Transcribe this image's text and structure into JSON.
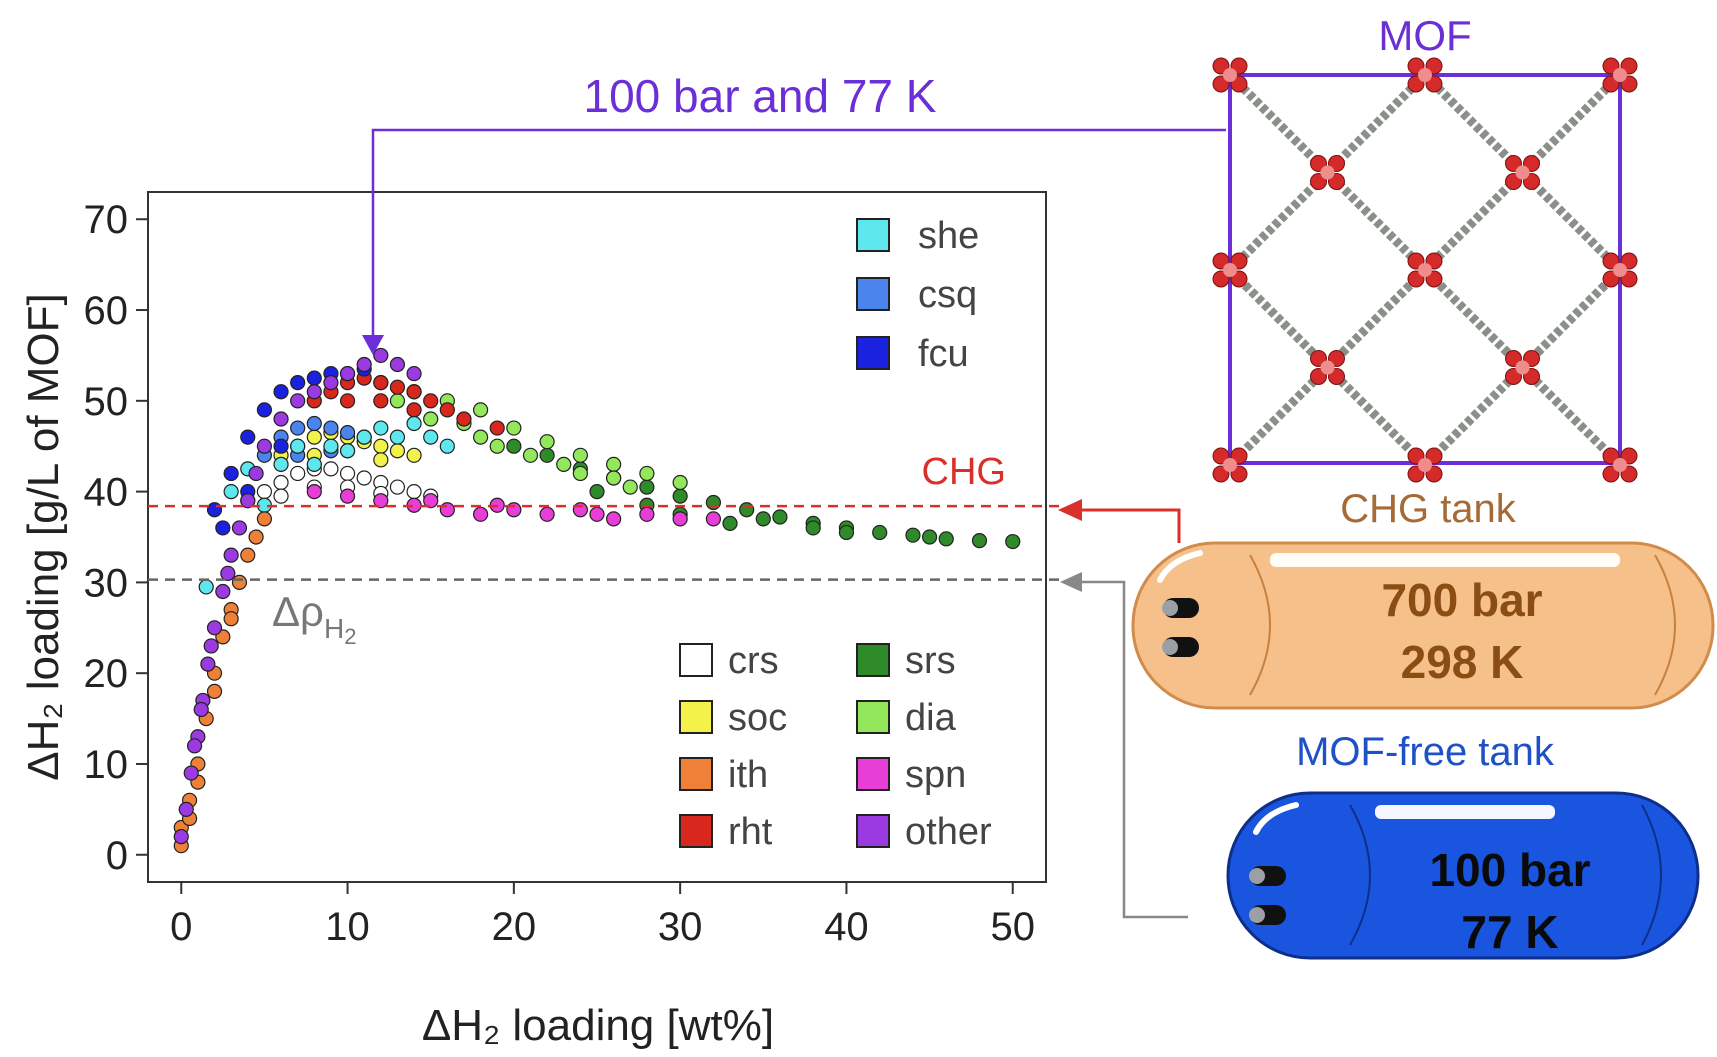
{
  "annotations": {
    "condition": "100 bar and 77 K",
    "mof_title": "MOF",
    "chg_label": "CHG",
    "delta_rho": "Δρ",
    "delta_rho_sub": "H",
    "delta_rho_sub2": "2",
    "chg_tank_title": "CHG tank",
    "chg_tank_line1": "700 bar",
    "chg_tank_line2": "298 K",
    "mof_free_title": "MOF-free tank",
    "mof_free_line1": "100 bar",
    "mof_free_line2": "77 K"
  },
  "colors": {
    "condition": "#6a2fd6",
    "chg": "#d9302c",
    "ref_gray": "#777777",
    "chg_tank_fill": "#f6c08a",
    "chg_tank_text": "#8a4d14",
    "mof_free_fill": "#1a55e0",
    "mof_free_title": "#1e50c8",
    "mof_frame": "#6a2fd6"
  },
  "chart_data": {
    "type": "scatter",
    "xlabel": "ΔH₂ loading [wt%]",
    "ylabel": "ΔH₂ loading [g/L of MOF]",
    "xlim": [
      -2,
      52
    ],
    "ylim": [
      -3,
      73
    ],
    "xticks": [
      0,
      10,
      20,
      30,
      40,
      50
    ],
    "yticks": [
      0,
      10,
      20,
      30,
      40,
      50,
      60,
      70
    ],
    "reference_lines": [
      {
        "name": "CHG",
        "y": 38.4,
        "color": "#d9302c",
        "style": "dashed"
      },
      {
        "name": "Δρ H2",
        "y": 30.3,
        "color": "#666666",
        "style": "dashed"
      }
    ],
    "legend_top": [
      {
        "name": "she",
        "color": "#5ee8ee"
      },
      {
        "name": "csq",
        "color": "#4a84ec"
      },
      {
        "name": "fcu",
        "color": "#1a22e0"
      }
    ],
    "legend_bottom": [
      {
        "name": "crs",
        "color": "#ffffff"
      },
      {
        "name": "soc",
        "color": "#f2f24a"
      },
      {
        "name": "ith",
        "color": "#ee8038"
      },
      {
        "name": "rht",
        "color": "#d8281e"
      },
      {
        "name": "srs",
        "color": "#2f8a2a"
      },
      {
        "name": "dia",
        "color": "#92e85a"
      },
      {
        "name": "spn",
        "color": "#e83ed8"
      },
      {
        "name": "other",
        "color": "#9a3ae0"
      }
    ],
    "series": [
      {
        "name": "srs",
        "color": "#2f8a2a",
        "points": [
          [
            20,
            45
          ],
          [
            22,
            44
          ],
          [
            24,
            42.5
          ],
          [
            26,
            41.5
          ],
          [
            28,
            40.5
          ],
          [
            30,
            39.5
          ],
          [
            32,
            38.8
          ],
          [
            34,
            38
          ],
          [
            36,
            37.2
          ],
          [
            38,
            36.5
          ],
          [
            40,
            36
          ],
          [
            42,
            35.5
          ],
          [
            44,
            35.2
          ],
          [
            46,
            34.8
          ],
          [
            48,
            34.6
          ],
          [
            50,
            34.5
          ],
          [
            25,
            40
          ],
          [
            30,
            37.5
          ],
          [
            35,
            37
          ],
          [
            40,
            35.5
          ],
          [
            45,
            35
          ],
          [
            28,
            38.5
          ],
          [
            33,
            36.5
          ],
          [
            38,
            36
          ]
        ]
      },
      {
        "name": "dia",
        "color": "#92e85a",
        "points": [
          [
            12,
            52
          ],
          [
            14,
            51
          ],
          [
            16,
            50
          ],
          [
            18,
            49
          ],
          [
            20,
            47
          ],
          [
            22,
            45.5
          ],
          [
            24,
            44
          ],
          [
            26,
            43
          ],
          [
            28,
            42
          ],
          [
            30,
            41
          ],
          [
            15,
            48
          ],
          [
            18,
            46
          ],
          [
            21,
            44
          ],
          [
            24,
            42
          ],
          [
            27,
            40.5
          ],
          [
            13,
            50
          ],
          [
            17,
            47.5
          ],
          [
            19,
            45
          ],
          [
            23,
            43
          ],
          [
            26,
            41.5
          ]
        ]
      },
      {
        "name": "crs",
        "color": "#ffffff",
        "points": [
          [
            4,
            39
          ],
          [
            5,
            40
          ],
          [
            6,
            41
          ],
          [
            7,
            42
          ],
          [
            8,
            42.5
          ],
          [
            9,
            42.5
          ],
          [
            10,
            42
          ],
          [
            11,
            41.5
          ],
          [
            12,
            41
          ],
          [
            13,
            40.5
          ],
          [
            14,
            40
          ],
          [
            15,
            39.5
          ],
          [
            6,
            39.5
          ],
          [
            8,
            40.5
          ],
          [
            10,
            40.5
          ],
          [
            12,
            39.8
          ]
        ]
      },
      {
        "name": "soc",
        "color": "#f2f24a",
        "points": [
          [
            6,
            44
          ],
          [
            7,
            45
          ],
          [
            8,
            46
          ],
          [
            9,
            46.5
          ],
          [
            10,
            46
          ],
          [
            11,
            45.5
          ],
          [
            12,
            45
          ],
          [
            13,
            44.5
          ],
          [
            8,
            44
          ],
          [
            10,
            44.5
          ],
          [
            12,
            43.5
          ],
          [
            14,
            44
          ]
        ]
      },
      {
        "name": "rht",
        "color": "#d8281e",
        "points": [
          [
            8,
            50
          ],
          [
            9,
            51
          ],
          [
            10,
            52
          ],
          [
            11,
            52.5
          ],
          [
            12,
            52
          ],
          [
            13,
            51.5
          ],
          [
            14,
            51
          ],
          [
            15,
            50
          ],
          [
            16,
            49
          ],
          [
            17,
            48
          ],
          [
            10,
            50
          ],
          [
            12,
            50
          ],
          [
            14,
            49
          ],
          [
            19,
            47
          ]
        ]
      },
      {
        "name": "csq",
        "color": "#4a84ec",
        "points": [
          [
            5,
            44
          ],
          [
            6,
            46
          ],
          [
            7,
            47
          ],
          [
            8,
            47.5
          ],
          [
            9,
            47
          ],
          [
            10,
            46.5
          ],
          [
            11,
            46
          ],
          [
            7,
            44
          ],
          [
            9,
            44.5
          ]
        ]
      },
      {
        "name": "fcu",
        "color": "#1a22e0",
        "points": [
          [
            2,
            38
          ],
          [
            3,
            42
          ],
          [
            4,
            46
          ],
          [
            5,
            49
          ],
          [
            6,
            51
          ],
          [
            7,
            52
          ],
          [
            8,
            52.5
          ],
          [
            9,
            53
          ],
          [
            10,
            53
          ],
          [
            11,
            53.5
          ],
          [
            2.5,
            36
          ],
          [
            4,
            40
          ],
          [
            6,
            45
          ]
        ]
      },
      {
        "name": "she",
        "color": "#5ee8ee",
        "points": [
          [
            1.5,
            29.5
          ],
          [
            3,
            40
          ],
          [
            4,
            42.5
          ],
          [
            6,
            43
          ],
          [
            7,
            45
          ],
          [
            9,
            45
          ],
          [
            10,
            44.5
          ],
          [
            11,
            46
          ],
          [
            12,
            47
          ],
          [
            13,
            46
          ],
          [
            14,
            47.5
          ],
          [
            15,
            46
          ],
          [
            5,
            38.5
          ],
          [
            8,
            43
          ],
          [
            16,
            45
          ]
        ]
      },
      {
        "name": "spn",
        "color": "#e83ed8",
        "points": [
          [
            8,
            40
          ],
          [
            10,
            39.5
          ],
          [
            12,
            39
          ],
          [
            14,
            38.5
          ],
          [
            16,
            38
          ],
          [
            18,
            37.5
          ],
          [
            20,
            38
          ],
          [
            22,
            37.5
          ],
          [
            24,
            38
          ],
          [
            26,
            37
          ],
          [
            28,
            37.5
          ],
          [
            30,
            37
          ],
          [
            32,
            37
          ],
          [
            15,
            39
          ],
          [
            19,
            38.5
          ],
          [
            25,
            37.5
          ]
        ]
      },
      {
        "name": "ith",
        "color": "#ee8038",
        "points": [
          [
            0,
            1
          ],
          [
            0,
            3
          ],
          [
            0.5,
            6
          ],
          [
            1,
            10
          ],
          [
            1.5,
            15
          ],
          [
            2,
            20
          ],
          [
            2.5,
            24
          ],
          [
            3,
            27
          ],
          [
            3.5,
            30
          ],
          [
            4,
            33
          ],
          [
            4.5,
            35
          ],
          [
            5,
            37
          ],
          [
            0.5,
            4
          ],
          [
            1,
            8
          ],
          [
            2,
            18
          ],
          [
            3,
            26
          ]
        ]
      },
      {
        "name": "other",
        "color": "#9a3ae0",
        "points": [
          [
            0,
            2
          ],
          [
            0.3,
            5
          ],
          [
            0.6,
            9
          ],
          [
            1,
            13
          ],
          [
            1.3,
            17
          ],
          [
            1.6,
            21
          ],
          [
            2,
            25
          ],
          [
            2.5,
            29
          ],
          [
            3,
            33
          ],
          [
            3.5,
            36
          ],
          [
            4,
            39
          ],
          [
            4.5,
            42
          ],
          [
            5,
            45
          ],
          [
            6,
            48
          ],
          [
            7,
            50
          ],
          [
            8,
            51
          ],
          [
            9,
            52
          ],
          [
            10,
            53
          ],
          [
            11,
            54
          ],
          [
            12,
            55
          ],
          [
            13,
            54
          ],
          [
            14,
            53
          ],
          [
            0.8,
            12
          ],
          [
            1.2,
            16
          ],
          [
            1.8,
            23
          ],
          [
            2.8,
            31
          ]
        ]
      }
    ]
  }
}
